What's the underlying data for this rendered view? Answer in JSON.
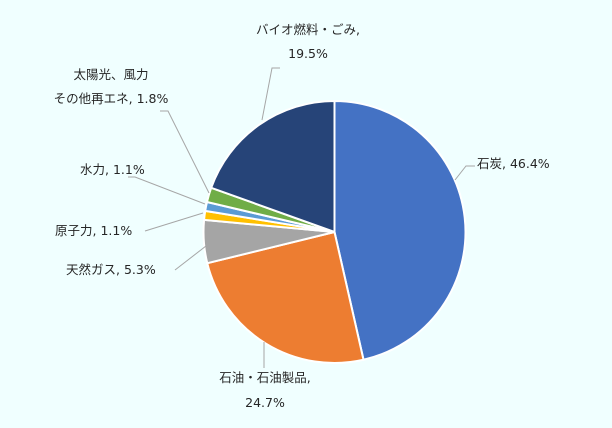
{
  "chart_data": {
    "type": "pie",
    "title": "",
    "start_angle_deg": 0,
    "direction": "clockwise",
    "slices": [
      {
        "name": "石炭",
        "value": 46.4,
        "label": "石炭, 46.4%",
        "color": "#4472c4"
      },
      {
        "name": "石油・石油製品",
        "value": 24.7,
        "label_line1": "石油・石油製品,",
        "label_line2": "24.7%",
        "color": "#ed7d31"
      },
      {
        "name": "天然ガス",
        "value": 5.3,
        "label": "天然ガス, 5.3%",
        "color": "#a5a5a5"
      },
      {
        "name": "原子力",
        "value": 1.1,
        "label": "原子力, 1.1%",
        "color": "#ffc000"
      },
      {
        "name": "水力",
        "value": 1.1,
        "label": "水力, 1.1%",
        "color": "#5b9bd5"
      },
      {
        "name": "太陽光、風力その他再エネ",
        "value": 1.8,
        "label_line1": "太陽光、風力",
        "label_line2": "その他再エネ, 1.8%",
        "color": "#70ad47"
      },
      {
        "name": "バイオ燃料・ごみ",
        "value": 19.5,
        "label_line1": "バイオ燃料・ごみ,",
        "label_line2": "19.5%",
        "color": "#264478"
      }
    ],
    "legend": "none (data labels with leader lines)"
  },
  "background": "#f0ffff"
}
